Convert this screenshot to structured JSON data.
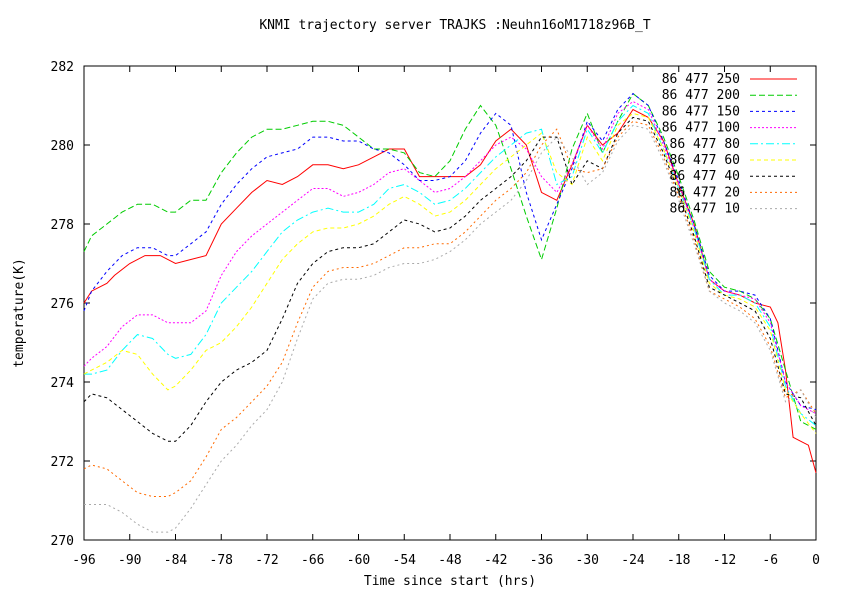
{
  "chart_data": {
    "type": "line",
    "title": "KNMI trajectory server TRAJKS :Neuhn16oM1718z96B_T",
    "xlabel": "Time since start (hrs)",
    "ylabel": "temperature(K)",
    "xlim": [
      -96,
      0
    ],
    "ylim": [
      270,
      282
    ],
    "xticks": [
      -96,
      -90,
      -84,
      -78,
      -72,
      -66,
      -60,
      -54,
      -48,
      -42,
      -36,
      -30,
      -24,
      -18,
      -12,
      -6,
      0
    ],
    "yticks": [
      270,
      272,
      274,
      276,
      278,
      280,
      282
    ],
    "legend_position": "top-right",
    "grid": false,
    "series": [
      {
        "name": "86 477 250",
        "color": "#ff0000",
        "dash": "",
        "x": [
          -96,
          -95,
          -93,
          -92,
          -90,
          -88,
          -86,
          -84,
          -82,
          -80,
          -78,
          -76,
          -74,
          -72,
          -70,
          -68,
          -66,
          -64,
          -62,
          -60,
          -58,
          -56,
          -54,
          -52,
          -50,
          -48,
          -46,
          -44,
          -42,
          -40,
          -38,
          -36,
          -34,
          -32,
          -30,
          -28,
          -26,
          -24,
          -22,
          -20,
          -18,
          -16,
          -14,
          -12,
          -10,
          -8,
          -6,
          -5,
          -4,
          -3,
          -2,
          -1,
          0
        ],
        "y": [
          276.0,
          276.3,
          276.5,
          276.7,
          277.0,
          277.2,
          277.2,
          277.0,
          277.1,
          277.2,
          278.0,
          278.4,
          278.8,
          279.1,
          279.0,
          279.2,
          279.5,
          279.5,
          279.4,
          279.5,
          279.7,
          279.9,
          279.9,
          279.2,
          279.2,
          279.2,
          279.2,
          279.5,
          280.1,
          280.4,
          280.0,
          278.8,
          278.6,
          279.5,
          280.5,
          280.0,
          280.3,
          280.9,
          280.7,
          280.1,
          279.0,
          278.0,
          276.6,
          276.3,
          276.2,
          276.0,
          275.9,
          275.5,
          274.3,
          272.6,
          272.5,
          272.4,
          271.7
        ]
      },
      {
        "name": "86 477 200",
        "color": "#00cc00",
        "dash": "6,3",
        "x": [
          -96,
          -95,
          -93,
          -91,
          -89,
          -87,
          -85,
          -84,
          -82,
          -80,
          -78,
          -76,
          -74,
          -72,
          -70,
          -68,
          -66,
          -64,
          -62,
          -60,
          -58,
          -56,
          -54,
          -52,
          -50,
          -48,
          -46,
          -44,
          -42,
          -40,
          -38,
          -36,
          -34,
          -32,
          -30,
          -28,
          -26,
          -24,
          -22,
          -20,
          -18,
          -16,
          -14,
          -12,
          -10,
          -8,
          -6,
          -4,
          -2,
          0
        ],
        "y": [
          277.3,
          277.7,
          278.0,
          278.3,
          278.5,
          278.5,
          278.3,
          278.3,
          278.6,
          278.6,
          279.3,
          279.8,
          280.2,
          280.4,
          280.4,
          280.5,
          280.6,
          280.6,
          280.5,
          280.2,
          279.9,
          279.9,
          279.8,
          279.3,
          279.2,
          279.6,
          280.4,
          281.0,
          280.5,
          279.4,
          278.2,
          277.1,
          278.4,
          279.9,
          280.8,
          279.8,
          280.6,
          281.3,
          281.0,
          280.2,
          279.2,
          278.1,
          276.8,
          276.4,
          276.3,
          276.1,
          275.6,
          274.3,
          273.0,
          272.8
        ]
      },
      {
        "name": "86 477 150",
        "color": "#0000ff",
        "dash": "3,3",
        "x": [
          -96,
          -95,
          -93,
          -91,
          -89,
          -87,
          -85,
          -84,
          -82,
          -80,
          -78,
          -76,
          -74,
          -72,
          -70,
          -68,
          -66,
          -64,
          -62,
          -60,
          -58,
          -56,
          -54,
          -52,
          -50,
          -48,
          -46,
          -44,
          -42,
          -40,
          -38,
          -36,
          -34,
          -32,
          -30,
          -28,
          -26,
          -24,
          -22,
          -20,
          -18,
          -16,
          -14,
          -12,
          -10,
          -8,
          -6,
          -4,
          -2,
          0
        ],
        "y": [
          275.8,
          276.3,
          276.8,
          277.2,
          277.4,
          277.4,
          277.2,
          277.2,
          277.5,
          277.8,
          278.5,
          279.0,
          279.4,
          279.7,
          279.8,
          279.9,
          280.2,
          280.2,
          280.1,
          280.1,
          279.9,
          279.8,
          279.5,
          279.1,
          279.1,
          279.2,
          279.6,
          280.3,
          280.8,
          280.5,
          278.8,
          277.6,
          278.5,
          279.4,
          280.6,
          280.1,
          280.9,
          281.3,
          281.0,
          280.1,
          279.1,
          278.0,
          276.7,
          276.3,
          276.3,
          276.2,
          275.6,
          274.0,
          273.4,
          273.3
        ]
      },
      {
        "name": "86 477 100",
        "color": "#ff00ff",
        "dash": "2,2",
        "x": [
          -96,
          -95,
          -93,
          -91,
          -89,
          -87,
          -85,
          -84,
          -82,
          -80,
          -78,
          -76,
          -74,
          -72,
          -70,
          -68,
          -66,
          -64,
          -62,
          -60,
          -58,
          -56,
          -54,
          -52,
          -50,
          -48,
          -46,
          -44,
          -42,
          -40,
          -38,
          -36,
          -34,
          -32,
          -30,
          -28,
          -26,
          -24,
          -22,
          -20,
          -18,
          -16,
          -14,
          -12,
          -10,
          -8,
          -6,
          -4,
          -2,
          0
        ],
        "y": [
          274.4,
          274.6,
          274.9,
          275.4,
          275.7,
          275.7,
          275.5,
          275.5,
          275.5,
          275.8,
          276.7,
          277.3,
          277.7,
          278.0,
          278.3,
          278.6,
          278.9,
          278.9,
          278.7,
          278.8,
          279.0,
          279.3,
          279.4,
          279.1,
          278.8,
          278.9,
          279.2,
          279.6,
          280.0,
          280.2,
          279.9,
          279.2,
          278.8,
          279.5,
          280.5,
          279.9,
          280.8,
          281.1,
          280.9,
          280.0,
          279.0,
          277.9,
          276.6,
          276.3,
          276.2,
          276.1,
          275.5,
          274.0,
          273.4,
          273.2
        ]
      },
      {
        "name": "86 477 80",
        "color": "#00ffff",
        "dash": "8,3,2,3",
        "x": [
          -96,
          -95,
          -93,
          -91,
          -89,
          -87,
          -85,
          -84,
          -82,
          -80,
          -78,
          -76,
          -74,
          -72,
          -70,
          -68,
          -66,
          -64,
          -62,
          -60,
          -58,
          -56,
          -54,
          -52,
          -50,
          -48,
          -46,
          -44,
          -42,
          -40,
          -38,
          -36,
          -34,
          -32,
          -30,
          -28,
          -26,
          -24,
          -22,
          -20,
          -18,
          -16,
          -14,
          -12,
          -10,
          -8,
          -6,
          -4,
          -2,
          0
        ],
        "y": [
          274.2,
          274.2,
          274.3,
          274.8,
          275.2,
          275.1,
          274.7,
          274.6,
          274.7,
          275.2,
          276.0,
          276.4,
          276.8,
          277.3,
          277.8,
          278.1,
          278.3,
          278.4,
          278.3,
          278.3,
          278.5,
          278.9,
          279.0,
          278.8,
          278.5,
          278.6,
          278.9,
          279.3,
          279.7,
          280.0,
          280.3,
          280.4,
          279.0,
          279.2,
          280.4,
          279.8,
          280.6,
          281.0,
          280.8,
          279.9,
          278.9,
          277.9,
          276.6,
          276.2,
          276.2,
          276.0,
          275.4,
          273.9,
          273.2,
          272.9
        ]
      },
      {
        "name": "86 477 60",
        "color": "#ffff00",
        "dash": "4,3",
        "x": [
          -96,
          -95,
          -93,
          -91,
          -89,
          -87,
          -85,
          -84,
          -82,
          -80,
          -78,
          -76,
          -74,
          -72,
          -70,
          -68,
          -66,
          -64,
          -62,
          -60,
          -58,
          -56,
          -54,
          -52,
          -50,
          -48,
          -46,
          -44,
          -42,
          -40,
          -38,
          -36,
          -34,
          -32,
          -30,
          -28,
          -26,
          -24,
          -22,
          -20,
          -18,
          -16,
          -14,
          -12,
          -10,
          -8,
          -6,
          -4,
          -2,
          0
        ],
        "y": [
          274.2,
          274.3,
          274.5,
          274.8,
          274.7,
          274.2,
          273.8,
          273.9,
          274.3,
          274.8,
          275.0,
          275.4,
          275.9,
          276.5,
          277.1,
          277.5,
          277.8,
          277.9,
          277.9,
          278.0,
          278.2,
          278.5,
          278.7,
          278.5,
          278.2,
          278.3,
          278.6,
          279.0,
          279.4,
          279.7,
          280.0,
          280.3,
          279.3,
          279.0,
          280.2,
          279.6,
          280.5,
          280.8,
          280.7,
          279.9,
          278.9,
          277.8,
          276.5,
          276.2,
          276.1,
          275.9,
          275.3,
          273.8,
          273.2,
          272.7
        ]
      },
      {
        "name": "86 477 40",
        "color": "#000000",
        "dash": "3,3",
        "x": [
          -96,
          -95,
          -93,
          -91,
          -89,
          -87,
          -85,
          -84,
          -82,
          -80,
          -78,
          -76,
          -74,
          -72,
          -70,
          -68,
          -66,
          -64,
          -62,
          -60,
          -58,
          -56,
          -54,
          -52,
          -50,
          -48,
          -46,
          -44,
          -42,
          -40,
          -38,
          -36,
          -34,
          -32,
          -30,
          -28,
          -26,
          -24,
          -22,
          -20,
          -18,
          -16,
          -14,
          -12,
          -10,
          -8,
          -6,
          -4,
          -2,
          0
        ],
        "y": [
          273.5,
          273.7,
          273.6,
          273.3,
          273.0,
          272.7,
          272.5,
          272.5,
          272.9,
          273.5,
          274.0,
          274.3,
          274.5,
          274.8,
          275.6,
          276.5,
          277.0,
          277.3,
          277.4,
          277.4,
          277.5,
          277.8,
          278.1,
          278.0,
          277.8,
          277.9,
          278.2,
          278.6,
          278.9,
          279.2,
          279.6,
          280.2,
          280.2,
          279.0,
          279.6,
          279.4,
          280.3,
          280.7,
          280.6,
          279.8,
          278.8,
          277.7,
          276.4,
          276.2,
          276.0,
          275.8,
          275.1,
          273.7,
          273.6,
          272.9
        ]
      },
      {
        "name": "86 477 20",
        "color": "#ff6a00",
        "dash": "2,3",
        "x": [
          -96,
          -95,
          -93,
          -91,
          -89,
          -87,
          -85,
          -84,
          -82,
          -80,
          -78,
          -76,
          -74,
          -72,
          -70,
          -68,
          -66,
          -64,
          -62,
          -60,
          -58,
          -56,
          -54,
          -52,
          -50,
          -48,
          -46,
          -44,
          -42,
          -40,
          -38,
          -36,
          -34,
          -32,
          -30,
          -28,
          -26,
          -24,
          -22,
          -20,
          -18,
          -16,
          -14,
          -12,
          -10,
          -8,
          -6,
          -4,
          -2,
          0
        ],
        "y": [
          271.8,
          271.9,
          271.8,
          271.5,
          271.2,
          271.1,
          271.1,
          271.2,
          271.5,
          272.1,
          272.8,
          273.1,
          273.5,
          273.9,
          274.5,
          275.5,
          276.4,
          276.8,
          276.9,
          276.9,
          277.0,
          277.2,
          277.4,
          277.4,
          277.5,
          277.5,
          277.8,
          278.2,
          278.6,
          278.9,
          279.3,
          280.0,
          280.4,
          279.4,
          279.3,
          279.4,
          280.2,
          280.6,
          280.5,
          279.7,
          278.7,
          277.6,
          276.3,
          276.1,
          275.9,
          275.6,
          274.9,
          273.6,
          273.8,
          273.2
        ]
      },
      {
        "name": "86 477 10",
        "color": "#aaaaaa",
        "dash": "2,3",
        "x": [
          -96,
          -95,
          -93,
          -91,
          -89,
          -87,
          -85,
          -84,
          -82,
          -80,
          -78,
          -76,
          -74,
          -72,
          -70,
          -68,
          -66,
          -64,
          -62,
          -60,
          -58,
          -56,
          -54,
          -52,
          -50,
          -48,
          -46,
          -44,
          -42,
          -40,
          -38,
          -36,
          -34,
          -32,
          -30,
          -28,
          -26,
          -24,
          -22,
          -20,
          -18,
          -16,
          -14,
          -12,
          -10,
          -8,
          -6,
          -4,
          -2,
          0
        ],
        "y": [
          270.9,
          270.9,
          270.9,
          270.7,
          270.4,
          270.2,
          270.2,
          270.3,
          270.8,
          271.4,
          272.0,
          272.4,
          272.9,
          273.3,
          274.0,
          275.1,
          276.1,
          276.5,
          276.6,
          276.6,
          276.7,
          276.9,
          277.0,
          277.0,
          277.1,
          277.3,
          277.6,
          278.0,
          278.3,
          278.6,
          279.1,
          279.8,
          280.2,
          279.7,
          279.0,
          279.3,
          280.1,
          280.5,
          280.4,
          279.6,
          278.6,
          277.5,
          276.3,
          276.0,
          275.8,
          275.5,
          274.8,
          273.5,
          273.8,
          273.1
        ]
      }
    ]
  }
}
